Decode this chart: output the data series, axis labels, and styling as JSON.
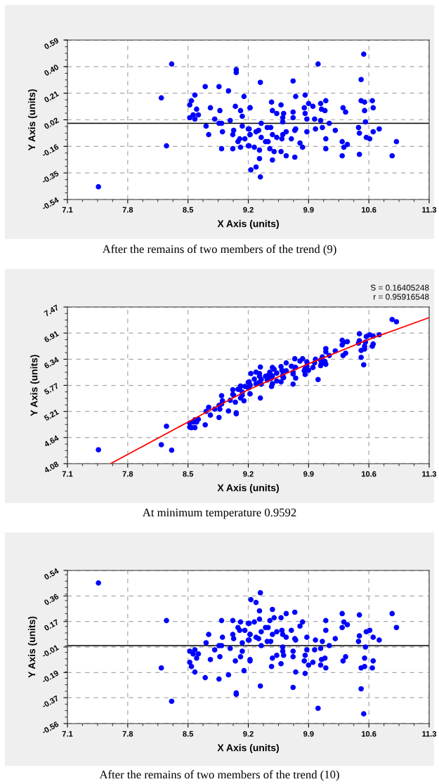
{
  "chart_data": [
    {
      "type": "scatter",
      "xlabel": "X Axis (units)",
      "ylabel": "Y Axis (units)",
      "xlim": [
        7.1,
        11.3
      ],
      "ylim": [
        -0.54,
        0.59
      ],
      "xticks": [
        7.1,
        7.8,
        8.5,
        9.2,
        9.9,
        10.6,
        11.3
      ],
      "yticks": [
        -0.54,
        {
          "value": -0.3517,
          "label": "-0.35"
        },
        {
          "value": -0.1633,
          "label": "-0.16"
        },
        {
          "value": 0.025,
          "label": "0.02"
        },
        {
          "value": 0.2133,
          "label": "0.21"
        },
        {
          "value": 0.4017,
          "label": "0.40"
        },
        0.59
      ],
      "grid": true,
      "ref_lines": [
        {
          "axis": "y",
          "value": 0,
          "color": "#000000",
          "line_style": "solid"
        }
      ],
      "annotations": [
        "After the remains of two members of the trend (9)"
      ],
      "series": [
        {
          "marker": "circle",
          "color": "#0000ff",
          "x": [
            7.46,
            8.31,
            8.19,
            8.25,
            9.06,
            9.06,
            8.7,
            8.86,
            8.97,
            8.58,
            8.54,
            8.52,
            9.15,
            8.6,
            8.76,
            8.87,
            9.05,
            9.11,
            9.13,
            9.22,
            8.52,
            8.56,
            8.62,
            8.58,
            8.81,
            8.99,
            8.86,
            8.89,
            8.71,
            9.13,
            9.2,
            8.74,
            8.9,
            9.03,
            9.02,
            9.22,
            9.1,
            9.16,
            9.08,
            9.2,
            8.89,
            9.02,
            9.11,
            9.23,
            10.54,
            10.01,
            9.34,
            9.72,
            10.51,
            9.75,
            9.86,
            9.47,
            9.58,
            9.22,
            9.9,
            9.95,
            10.04,
            10.1,
            10.51,
            10.55,
            10.64,
            10.65,
            10.3,
            10.33,
            10.55,
            10.05,
            10.09,
            9.48,
            9.53,
            9.61,
            9.72,
            9.85,
            9.86,
            9.6,
            9.72,
            9.88,
            9.97,
            10.04,
            9.6,
            9.35,
            10.14,
            10.56,
            9.21,
            9.32,
            9.29,
            9.42,
            9.46,
            9.75,
            9.74,
            9.88,
            9.98,
            10.06,
            10.21,
            10.48,
            10.49,
            10.72,
            10.65,
            9.22,
            9.48,
            9.53,
            9.64,
            9.6,
            9.35,
            9.4,
            9.43,
            9.59,
            9.7,
            10.57,
            10.61,
            10.92,
            10.1,
            10.29,
            10.35,
            9.8,
            9.83,
            10.31,
            10.1,
            9.21,
            9.27,
            9.33,
            9.45,
            9.5,
            9.58,
            9.64,
            9.74,
            9.48,
            9.33,
            10.29,
            10.49,
            10.87,
            9.29,
            9.34
          ],
          "values": [
            -0.45,
            0.42,
            0.18,
            -0.16,
            0.38,
            0.36,
            0.26,
            0.26,
            0.23,
            0.2,
            0.16,
            0.13,
            0.19,
            0.1,
            0.11,
            0.09,
            0.12,
            0.09,
            0.05,
            0.11,
            0.04,
            0.06,
            0.06,
            0.03,
            0.03,
            0.02,
            0.0,
            0.0,
            -0.02,
            -0.02,
            -0.04,
            -0.08,
            -0.06,
            -0.05,
            -0.08,
            -0.08,
            -0.11,
            -0.11,
            -0.13,
            -0.16,
            -0.18,
            -0.18,
            -0.17,
            -0.33,
            0.49,
            0.42,
            0.29,
            0.3,
            0.31,
            0.19,
            0.2,
            0.15,
            0.13,
            0.11,
            0.14,
            0.12,
            0.14,
            0.16,
            0.16,
            0.15,
            0.16,
            0.11,
            0.11,
            0.08,
            0.09,
            0.1,
            0.09,
            0.09,
            0.07,
            0.07,
            0.08,
            0.11,
            0.07,
            0.04,
            0.04,
            0.03,
            0.03,
            0.02,
            0.01,
            0.0,
            0.0,
            0.01,
            -0.04,
            -0.05,
            -0.06,
            -0.03,
            -0.03,
            -0.04,
            -0.05,
            -0.06,
            -0.04,
            -0.03,
            -0.05,
            -0.03,
            -0.07,
            -0.04,
            -0.06,
            -0.08,
            -0.08,
            -0.1,
            -0.06,
            -0.08,
            -0.1,
            -0.13,
            -0.13,
            -0.11,
            -0.11,
            -0.1,
            -0.11,
            -0.13,
            -0.11,
            -0.13,
            -0.15,
            -0.14,
            -0.17,
            -0.17,
            -0.18,
            -0.16,
            -0.17,
            -0.19,
            -0.18,
            -0.2,
            -0.2,
            -0.23,
            -0.24,
            -0.26,
            -0.25,
            -0.23,
            -0.22,
            -0.23,
            -0.31,
            -0.38
          ]
        }
      ]
    },
    {
      "type": "scatter",
      "xlabel": "X Axis (units)",
      "ylabel": "Y Axis (units)",
      "xlim": [
        7.1,
        11.3
      ],
      "ylim": [
        4.08,
        7.47
      ],
      "xticks": [
        7.1,
        7.8,
        8.5,
        9.2,
        9.9,
        10.6,
        11.3
      ],
      "yticks": [
        4.08,
        {
          "value": 4.645,
          "label": "4.64"
        },
        5.21,
        {
          "value": 5.775,
          "label": "5.77"
        },
        6.34,
        {
          "value": 6.905,
          "label": "6.91"
        },
        7.47
      ],
      "grid": true,
      "annotations": [
        "S = 0.16405248",
        "r = 0.95916548",
        "At minimum temperature 0.9592"
      ],
      "series": [
        {
          "marker": "circle",
          "color": "#0000ff",
          "x": [
            7.46,
            8.31,
            8.19,
            8.25,
            9.06,
            9.06,
            8.7,
            8.86,
            8.97,
            8.58,
            8.54,
            8.52,
            9.15,
            8.6,
            8.76,
            8.87,
            9.05,
            9.11,
            9.13,
            9.22,
            8.52,
            8.56,
            8.62,
            8.58,
            8.81,
            8.99,
            8.86,
            8.89,
            8.71,
            9.13,
            9.2,
            8.74,
            8.9,
            9.03,
            9.02,
            9.22,
            9.1,
            9.16,
            9.08,
            9.2,
            8.89,
            9.02,
            9.11,
            9.23,
            10.54,
            10.01,
            9.34,
            9.72,
            10.51,
            9.75,
            9.86,
            9.47,
            9.58,
            9.22,
            9.9,
            9.95,
            10.04,
            10.1,
            10.51,
            10.55,
            10.64,
            10.65,
            10.3,
            10.33,
            10.55,
            10.05,
            10.09,
            9.48,
            9.53,
            9.61,
            9.72,
            9.85,
            9.86,
            9.6,
            9.72,
            9.88,
            9.97,
            10.04,
            9.6,
            9.35,
            10.14,
            10.56,
            9.21,
            9.32,
            9.29,
            9.42,
            9.46,
            9.75,
            9.74,
            9.88,
            9.98,
            10.06,
            10.21,
            10.48,
            10.49,
            10.72,
            10.65,
            9.22,
            9.48,
            9.53,
            9.64,
            9.6,
            9.35,
            9.4,
            9.43,
            9.59,
            9.7,
            10.57,
            10.61,
            10.92,
            10.1,
            10.29,
            10.35,
            9.8,
            9.83,
            10.31,
            10.1,
            9.21,
            9.27,
            9.33,
            9.45,
            9.5,
            9.58,
            9.64,
            9.74,
            9.48,
            9.33,
            10.29,
            10.49,
            10.87,
            9.29,
            9.34
          ],
          "values": [
            4.38,
            4.37,
            4.49,
            4.89,
            5.16,
            5.18,
            4.92,
            5.08,
            5.22,
            4.86,
            4.86,
            4.87,
            5.44,
            4.98,
            5.13,
            5.26,
            5.41,
            5.5,
            5.56,
            5.59,
            4.96,
            4.98,
            5.04,
            5.03,
            5.26,
            5.45,
            5.34,
            5.37,
            5.21,
            5.63,
            5.72,
            5.3,
            5.44,
            5.56,
            5.58,
            5.78,
            5.69,
            5.75,
            5.69,
            5.84,
            5.55,
            5.68,
            5.76,
            6.03,
            6.22,
            5.9,
            5.5,
            5.8,
            6.38,
            5.93,
            6.01,
            5.75,
            5.85,
            5.59,
            6.1,
            6.16,
            6.2,
            6.23,
            6.53,
            6.56,
            6.62,
            6.67,
            6.42,
            6.47,
            6.62,
            6.25,
            6.29,
            5.81,
            5.87,
            5.94,
            6.02,
            6.09,
            6.14,
            5.96,
            6.06,
            6.19,
            6.26,
            6.32,
            5.99,
            5.8,
            6.42,
            6.71,
            5.73,
            5.83,
            5.81,
            5.89,
            5.92,
            6.16,
            6.16,
            6.28,
            6.34,
            6.39,
            6.52,
            6.69,
            6.74,
            6.87,
            6.84,
            5.78,
            5.98,
            6.04,
            6.09,
            6.08,
            5.9,
            5.97,
            5.99,
            6.1,
            6.19,
            6.83,
            6.87,
            7.15,
            6.5,
            6.65,
            6.72,
            6.3,
            6.35,
            6.71,
            6.57,
            5.85,
            5.91,
            5.97,
            6.06,
            6.12,
            6.18,
            6.26,
            6.35,
            6.16,
            6.03,
            6.75,
            6.89,
            7.2,
            6.06,
            6.17
          ]
        },
        {
          "type": "line",
          "color": "#ff0000",
          "x": [
            7.6,
            8.5,
            9.2,
            9.9,
            10.6,
            11.3
          ],
          "values": [
            4.08,
            4.98,
            5.68,
            6.24,
            6.77,
            7.24
          ]
        }
      ]
    },
    {
      "type": "scatter",
      "xlabel": "X Axis (units)",
      "ylabel": "Y Axis (units)",
      "xlim": [
        7.1,
        11.3
      ],
      "ylim": [
        -0.56,
        0.54
      ],
      "xticks": [
        7.1,
        7.8,
        8.5,
        9.2,
        9.9,
        10.6,
        11.3
      ],
      "yticks": [
        -0.56,
        {
          "value": -0.374,
          "label": "-0.37"
        },
        {
          "value": -0.1933,
          "label": "-0.19"
        },
        -0.01,
        {
          "value": 0.1733,
          "label": "0.17"
        },
        {
          "value": 0.3567,
          "label": "0.36"
        },
        0.54
      ],
      "grid": true,
      "ref_lines": [
        {
          "axis": "y",
          "value": 0,
          "color": "#000000",
          "line_style": "solid"
        }
      ],
      "annotations": [
        "After the remains of two members of the trend (10)"
      ],
      "series": [
        {
          "marker": "circle",
          "color": "#0000ff",
          "x": [
            7.46,
            8.31,
            8.19,
            8.25,
            9.06,
            9.06,
            8.7,
            8.86,
            8.97,
            8.58,
            8.54,
            8.52,
            9.15,
            8.6,
            8.76,
            8.87,
            9.05,
            9.11,
            9.13,
            9.22,
            8.52,
            8.56,
            8.62,
            8.58,
            8.81,
            8.99,
            8.86,
            8.89,
            8.71,
            9.13,
            9.2,
            8.74,
            8.9,
            9.03,
            9.02,
            9.22,
            9.1,
            9.16,
            9.08,
            9.2,
            8.89,
            9.02,
            9.11,
            9.23,
            10.54,
            10.01,
            9.34,
            9.72,
            10.51,
            9.75,
            9.86,
            9.47,
            9.58,
            9.22,
            9.9,
            9.95,
            10.04,
            10.1,
            10.51,
            10.55,
            10.64,
            10.65,
            10.3,
            10.33,
            10.55,
            10.05,
            10.09,
            9.48,
            9.53,
            9.61,
            9.72,
            9.85,
            9.86,
            9.6,
            9.72,
            9.88,
            9.97,
            10.04,
            9.6,
            9.35,
            10.14,
            10.56,
            9.21,
            9.32,
            9.29,
            9.42,
            9.46,
            9.75,
            9.74,
            9.88,
            9.98,
            10.06,
            10.21,
            10.48,
            10.49,
            10.72,
            10.65,
            9.22,
            9.48,
            9.53,
            9.64,
            9.6,
            9.35,
            9.4,
            9.43,
            9.59,
            9.7,
            10.57,
            10.61,
            10.92,
            10.1,
            10.29,
            10.35,
            9.8,
            9.83,
            10.31,
            10.1,
            9.21,
            9.27,
            9.33,
            9.45,
            9.5,
            9.58,
            9.64,
            9.74,
            9.48,
            9.33,
            10.29,
            10.49,
            10.87,
            9.29,
            9.34
          ],
          "values": [
            0.45,
            -0.4,
            -0.16,
            0.18,
            -0.35,
            -0.34,
            -0.23,
            -0.24,
            -0.21,
            -0.19,
            -0.15,
            -0.12,
            -0.18,
            -0.09,
            -0.1,
            -0.08,
            -0.11,
            -0.08,
            -0.04,
            -0.1,
            -0.04,
            -0.06,
            -0.06,
            -0.03,
            -0.03,
            -0.02,
            0.0,
            0.0,
            0.02,
            0.02,
            0.04,
            0.08,
            0.06,
            0.05,
            0.08,
            0.08,
            0.11,
            0.11,
            0.13,
            0.16,
            0.18,
            0.18,
            0.17,
            0.33,
            -0.49,
            -0.45,
            -0.29,
            -0.3,
            -0.31,
            -0.19,
            -0.2,
            -0.15,
            -0.13,
            -0.11,
            -0.14,
            -0.12,
            -0.14,
            -0.16,
            -0.16,
            -0.15,
            -0.16,
            -0.11,
            -0.11,
            -0.08,
            -0.09,
            -0.1,
            -0.09,
            -0.09,
            -0.07,
            -0.07,
            -0.08,
            -0.11,
            -0.07,
            -0.04,
            -0.04,
            -0.03,
            -0.03,
            -0.02,
            -0.01,
            0.0,
            0.0,
            -0.01,
            0.04,
            0.05,
            0.06,
            0.03,
            0.03,
            0.04,
            0.05,
            0.06,
            0.04,
            0.03,
            0.05,
            0.03,
            0.07,
            0.04,
            0.06,
            0.08,
            0.08,
            0.1,
            0.06,
            0.08,
            0.1,
            0.13,
            0.13,
            0.11,
            0.11,
            0.1,
            0.11,
            0.13,
            0.11,
            0.13,
            0.15,
            0.14,
            0.17,
            0.17,
            0.18,
            0.16,
            0.17,
            0.19,
            0.18,
            0.2,
            0.2,
            0.23,
            0.24,
            0.26,
            0.25,
            0.23,
            0.22,
            0.23,
            0.31,
            0.38
          ]
        }
      ]
    }
  ]
}
